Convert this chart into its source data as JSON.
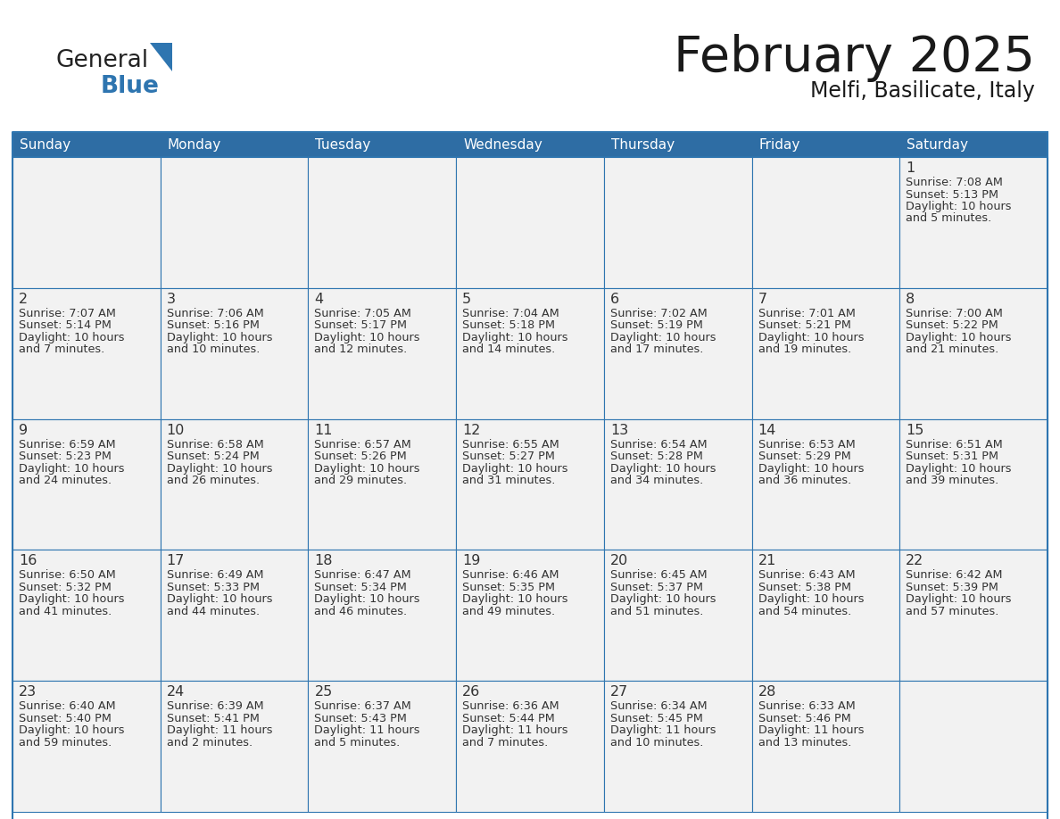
{
  "title": "February 2025",
  "subtitle": "Melfi, Basilicate, Italy",
  "header_bg": "#2E6DA4",
  "header_text_color": "#FFFFFF",
  "cell_line_color": "#2E75B0",
  "cell_bg": "#F2F2F2",
  "cell_bg_white": "#FFFFFF",
  "day_names": [
    "Sunday",
    "Monday",
    "Tuesday",
    "Wednesday",
    "Thursday",
    "Friday",
    "Saturday"
  ],
  "days": [
    {
      "day": 1,
      "col": 6,
      "row": 0,
      "sunrise": "7:08 AM",
      "sunset": "5:13 PM",
      "daylight_line1": "Daylight: 10 hours",
      "daylight_line2": "and 5 minutes."
    },
    {
      "day": 2,
      "col": 0,
      "row": 1,
      "sunrise": "7:07 AM",
      "sunset": "5:14 PM",
      "daylight_line1": "Daylight: 10 hours",
      "daylight_line2": "and 7 minutes."
    },
    {
      "day": 3,
      "col": 1,
      "row": 1,
      "sunrise": "7:06 AM",
      "sunset": "5:16 PM",
      "daylight_line1": "Daylight: 10 hours",
      "daylight_line2": "and 10 minutes."
    },
    {
      "day": 4,
      "col": 2,
      "row": 1,
      "sunrise": "7:05 AM",
      "sunset": "5:17 PM",
      "daylight_line1": "Daylight: 10 hours",
      "daylight_line2": "and 12 minutes."
    },
    {
      "day": 5,
      "col": 3,
      "row": 1,
      "sunrise": "7:04 AM",
      "sunset": "5:18 PM",
      "daylight_line1": "Daylight: 10 hours",
      "daylight_line2": "and 14 minutes."
    },
    {
      "day": 6,
      "col": 4,
      "row": 1,
      "sunrise": "7:02 AM",
      "sunset": "5:19 PM",
      "daylight_line1": "Daylight: 10 hours",
      "daylight_line2": "and 17 minutes."
    },
    {
      "day": 7,
      "col": 5,
      "row": 1,
      "sunrise": "7:01 AM",
      "sunset": "5:21 PM",
      "daylight_line1": "Daylight: 10 hours",
      "daylight_line2": "and 19 minutes."
    },
    {
      "day": 8,
      "col": 6,
      "row": 1,
      "sunrise": "7:00 AM",
      "sunset": "5:22 PM",
      "daylight_line1": "Daylight: 10 hours",
      "daylight_line2": "and 21 minutes."
    },
    {
      "day": 9,
      "col": 0,
      "row": 2,
      "sunrise": "6:59 AM",
      "sunset": "5:23 PM",
      "daylight_line1": "Daylight: 10 hours",
      "daylight_line2": "and 24 minutes."
    },
    {
      "day": 10,
      "col": 1,
      "row": 2,
      "sunrise": "6:58 AM",
      "sunset": "5:24 PM",
      "daylight_line1": "Daylight: 10 hours",
      "daylight_line2": "and 26 minutes."
    },
    {
      "day": 11,
      "col": 2,
      "row": 2,
      "sunrise": "6:57 AM",
      "sunset": "5:26 PM",
      "daylight_line1": "Daylight: 10 hours",
      "daylight_line2": "and 29 minutes."
    },
    {
      "day": 12,
      "col": 3,
      "row": 2,
      "sunrise": "6:55 AM",
      "sunset": "5:27 PM",
      "daylight_line1": "Daylight: 10 hours",
      "daylight_line2": "and 31 minutes."
    },
    {
      "day": 13,
      "col": 4,
      "row": 2,
      "sunrise": "6:54 AM",
      "sunset": "5:28 PM",
      "daylight_line1": "Daylight: 10 hours",
      "daylight_line2": "and 34 minutes."
    },
    {
      "day": 14,
      "col": 5,
      "row": 2,
      "sunrise": "6:53 AM",
      "sunset": "5:29 PM",
      "daylight_line1": "Daylight: 10 hours",
      "daylight_line2": "and 36 minutes."
    },
    {
      "day": 15,
      "col": 6,
      "row": 2,
      "sunrise": "6:51 AM",
      "sunset": "5:31 PM",
      "daylight_line1": "Daylight: 10 hours",
      "daylight_line2": "and 39 minutes."
    },
    {
      "day": 16,
      "col": 0,
      "row": 3,
      "sunrise": "6:50 AM",
      "sunset": "5:32 PM",
      "daylight_line1": "Daylight: 10 hours",
      "daylight_line2": "and 41 minutes."
    },
    {
      "day": 17,
      "col": 1,
      "row": 3,
      "sunrise": "6:49 AM",
      "sunset": "5:33 PM",
      "daylight_line1": "Daylight: 10 hours",
      "daylight_line2": "and 44 minutes."
    },
    {
      "day": 18,
      "col": 2,
      "row": 3,
      "sunrise": "6:47 AM",
      "sunset": "5:34 PM",
      "daylight_line1": "Daylight: 10 hours",
      "daylight_line2": "and 46 minutes."
    },
    {
      "day": 19,
      "col": 3,
      "row": 3,
      "sunrise": "6:46 AM",
      "sunset": "5:35 PM",
      "daylight_line1": "Daylight: 10 hours",
      "daylight_line2": "and 49 minutes."
    },
    {
      "day": 20,
      "col": 4,
      "row": 3,
      "sunrise": "6:45 AM",
      "sunset": "5:37 PM",
      "daylight_line1": "Daylight: 10 hours",
      "daylight_line2": "and 51 minutes."
    },
    {
      "day": 21,
      "col": 5,
      "row": 3,
      "sunrise": "6:43 AM",
      "sunset": "5:38 PM",
      "daylight_line1": "Daylight: 10 hours",
      "daylight_line2": "and 54 minutes."
    },
    {
      "day": 22,
      "col": 6,
      "row": 3,
      "sunrise": "6:42 AM",
      "sunset": "5:39 PM",
      "daylight_line1": "Daylight: 10 hours",
      "daylight_line2": "and 57 minutes."
    },
    {
      "day": 23,
      "col": 0,
      "row": 4,
      "sunrise": "6:40 AM",
      "sunset": "5:40 PM",
      "daylight_line1": "Daylight: 10 hours",
      "daylight_line2": "and 59 minutes."
    },
    {
      "day": 24,
      "col": 1,
      "row": 4,
      "sunrise": "6:39 AM",
      "sunset": "5:41 PM",
      "daylight_line1": "Daylight: 11 hours",
      "daylight_line2": "and 2 minutes."
    },
    {
      "day": 25,
      "col": 2,
      "row": 4,
      "sunrise": "6:37 AM",
      "sunset": "5:43 PM",
      "daylight_line1": "Daylight: 11 hours",
      "daylight_line2": "and 5 minutes."
    },
    {
      "day": 26,
      "col": 3,
      "row": 4,
      "sunrise": "6:36 AM",
      "sunset": "5:44 PM",
      "daylight_line1": "Daylight: 11 hours",
      "daylight_line2": "and 7 minutes."
    },
    {
      "day": 27,
      "col": 4,
      "row": 4,
      "sunrise": "6:34 AM",
      "sunset": "5:45 PM",
      "daylight_line1": "Daylight: 11 hours",
      "daylight_line2": "and 10 minutes."
    },
    {
      "day": 28,
      "col": 5,
      "row": 4,
      "sunrise": "6:33 AM",
      "sunset": "5:46 PM",
      "daylight_line1": "Daylight: 11 hours",
      "daylight_line2": "and 13 minutes."
    }
  ],
  "num_rows": 5,
  "num_cols": 7
}
